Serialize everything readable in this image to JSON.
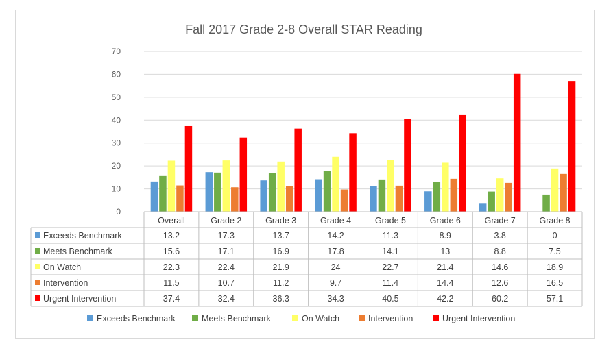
{
  "chart_data": {
    "type": "bar",
    "title": "Fall 2017 Grade 2-8 Overall STAR Reading",
    "xlabel": "",
    "ylabel": "",
    "ylim": [
      0,
      70
    ],
    "yticks": [
      0,
      10,
      20,
      30,
      40,
      50,
      60,
      70
    ],
    "grid": true,
    "legend": "bottom",
    "data_table": true,
    "categories": [
      "Overall",
      "Grade 2",
      "Grade 3",
      "Grade 4",
      "Grade 5",
      "Grade 6",
      "Grade 7",
      "Grade 8"
    ],
    "series": [
      {
        "name": "Exceeds Benchmark",
        "color": "#5b9bd5",
        "values": [
          13.2,
          17.3,
          13.7,
          14.2,
          11.3,
          8.9,
          3.8,
          0
        ]
      },
      {
        "name": "Meets Benchmark",
        "color": "#70ad47",
        "values": [
          15.6,
          17.1,
          16.9,
          17.8,
          14.1,
          13,
          8.8,
          7.5
        ]
      },
      {
        "name": "On Watch",
        "color": "#ffff66",
        "values": [
          22.3,
          22.4,
          21.9,
          24,
          22.7,
          21.4,
          14.6,
          18.9
        ]
      },
      {
        "name": "Intervention",
        "color": "#ed7d31",
        "values": [
          11.5,
          10.7,
          11.2,
          9.7,
          11.4,
          14.4,
          12.6,
          16.5
        ]
      },
      {
        "name": "Urgent Intervention",
        "color": "#ff0000",
        "values": [
          37.4,
          32.4,
          36.3,
          34.3,
          40.5,
          42.2,
          60.2,
          57.1
        ]
      }
    ]
  }
}
